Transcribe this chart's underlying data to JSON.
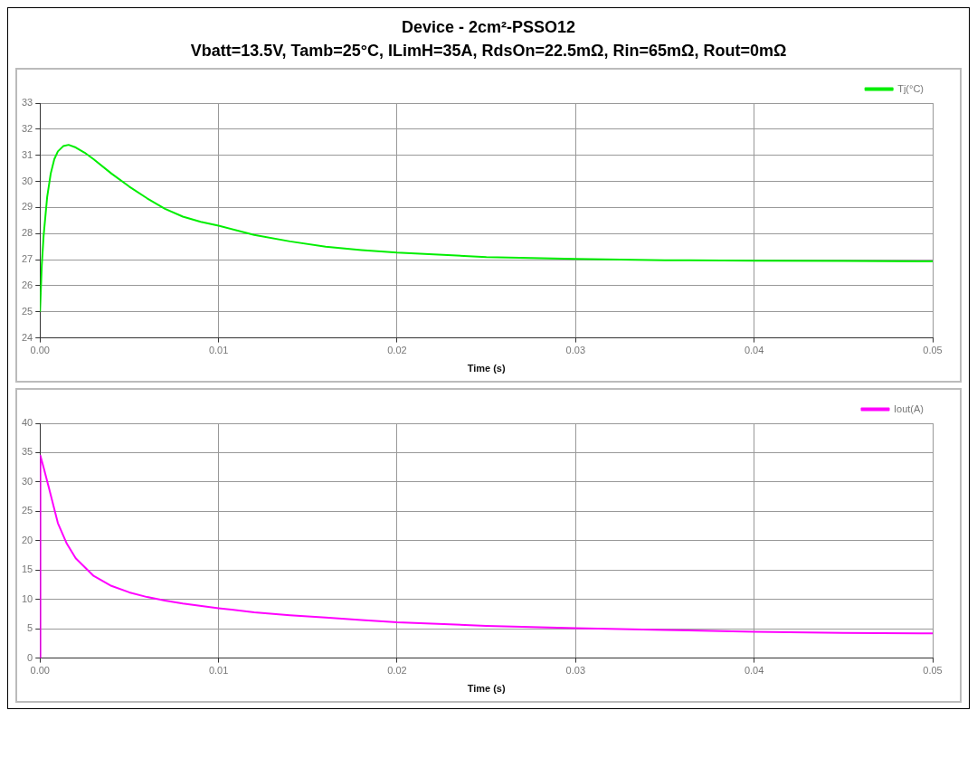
{
  "chart_data": [
    {
      "type": "line",
      "title": "Device - 2cm²-PSSO12",
      "subtitle": "Vbatt=13.5V, Tamb=25°C, ILimH=35A, RdsOn=22.5mΩ, Rin=65mΩ, Rout=0mΩ",
      "xlabel": "Time (s)",
      "x": [
        0,
        0.0001,
        0.0002,
        0.0004,
        0.0006,
        0.0008,
        0.001,
        0.0013,
        0.0016,
        0.002,
        0.0025,
        0.003,
        0.004,
        0.005,
        0.006,
        0.007,
        0.008,
        0.009,
        0.01,
        0.012,
        0.014,
        0.016,
        0.018,
        0.02,
        0.025,
        0.03,
        0.035,
        0.04,
        0.045,
        0.05
      ],
      "series": [
        {
          "name": "Tj(°C)",
          "color": "#00ee00",
          "values": [
            25,
            26.8,
            27.9,
            29.4,
            30.3,
            30.85,
            31.15,
            31.35,
            31.4,
            31.3,
            31.1,
            30.85,
            30.3,
            29.8,
            29.35,
            28.95,
            28.65,
            28.45,
            28.3,
            27.95,
            27.7,
            27.5,
            27.37,
            27.27,
            27.1,
            27.03,
            26.98,
            26.96,
            26.95,
            26.93
          ]
        }
      ],
      "xlim": [
        0,
        0.05
      ],
      "xticks": [
        {
          "value": 0,
          "label": "0.00"
        },
        0.01,
        0.02,
        0.03,
        0.04,
        0.05
      ],
      "ylim": [
        24,
        33
      ],
      "yticks": [
        24,
        25,
        26,
        27,
        28,
        29,
        30,
        31,
        32,
        33
      ],
      "grid": true,
      "legend": "top right",
      "marker": "none",
      "line_style": "solid"
    },
    {
      "type": "line",
      "xlabel": "Time (s)",
      "x": [
        0,
        2e-05,
        0.0002,
        0.0005,
        0.001,
        0.0015,
        0.002,
        0.003,
        0.004,
        0.005,
        0.006,
        0.007,
        0.008,
        0.01,
        0.012,
        0.014,
        0.016,
        0.018,
        0.02,
        0.025,
        0.03,
        0.035,
        0.04,
        0.045,
        0.05
      ],
      "series": [
        {
          "name": "Iout(A)",
          "color": "#ff00ff",
          "values": [
            0,
            34.5,
            32.5,
            29,
            23,
            19.5,
            17,
            14,
            12.3,
            11.2,
            10.4,
            9.8,
            9.3,
            8.5,
            7.8,
            7.3,
            6.9,
            6.5,
            6.1,
            5.5,
            5.1,
            4.8,
            4.5,
            4.3,
            4.2
          ]
        }
      ],
      "xlim": [
        0,
        0.05
      ],
      "xticks": [
        {
          "value": 0,
          "label": "0.00"
        },
        0.01,
        0.02,
        0.03,
        0.04,
        0.05
      ],
      "ylim": [
        0,
        40
      ],
      "yticks": [
        0,
        5,
        10,
        15,
        20,
        25,
        30,
        35,
        40
      ],
      "grid": true,
      "legend": "top right",
      "marker": "none",
      "line_style": "solid"
    }
  ]
}
